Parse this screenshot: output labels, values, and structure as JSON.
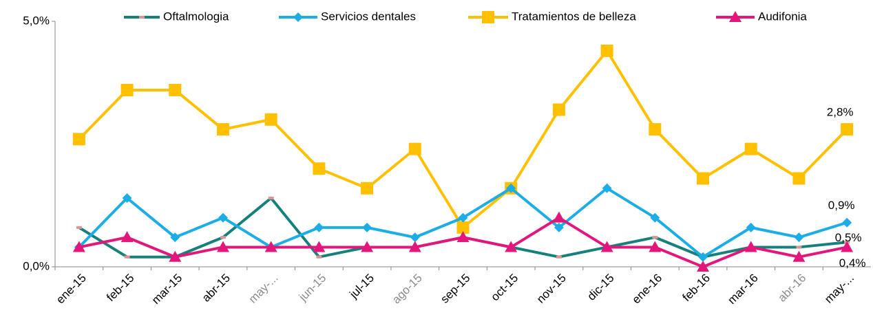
{
  "chart_data": {
    "type": "line",
    "categories": [
      "ene-15",
      "feb-15",
      "mar-15",
      "abr-15",
      "may-...",
      "jun-15",
      "jul-15",
      "ago-15",
      "sep-15",
      "oct-15",
      "nov-15",
      "dic-15",
      "ene-16",
      "feb-16",
      "mar-16",
      "abr-16",
      "may-..."
    ],
    "series": [
      {
        "name": "Oftalmologia",
        "color": "#17807a",
        "marker_color": "#d99694",
        "marker": "dash",
        "values": [
          0.8,
          0.2,
          0.2,
          0.6,
          1.4,
          0.2,
          0.4,
          0.4,
          0.6,
          0.4,
          0.2,
          0.4,
          0.6,
          0.2,
          0.4,
          0.4,
          0.5
        ],
        "value_labels": [
          null,
          null,
          null,
          null,
          null,
          null,
          null,
          null,
          null,
          null,
          null,
          null,
          null,
          null,
          null,
          null,
          "0,5%"
        ]
      },
      {
        "name": "Servicios dentales",
        "color": "#1cade4",
        "marker_color": "#1cade4",
        "marker": "diamond",
        "values": [
          0.4,
          1.4,
          0.6,
          1.0,
          0.4,
          0.8,
          0.8,
          0.6,
          1.0,
          1.6,
          0.8,
          1.6,
          1.0,
          0.2,
          0.8,
          0.6,
          0.9
        ],
        "value_labels": [
          null,
          null,
          null,
          null,
          null,
          null,
          null,
          null,
          null,
          null,
          null,
          null,
          null,
          null,
          null,
          null,
          "0,9%"
        ]
      },
      {
        "name": "Tratamientos de belleza",
        "color": "#ffc000",
        "marker_color": "#ffc000",
        "marker": "square",
        "values": [
          2.6,
          3.6,
          3.6,
          2.8,
          3.0,
          2.0,
          1.6,
          2.4,
          0.8,
          1.6,
          3.2,
          4.4,
          2.8,
          1.8,
          2.4,
          1.8,
          2.8
        ],
        "value_labels": [
          null,
          null,
          null,
          null,
          null,
          null,
          null,
          null,
          null,
          null,
          null,
          null,
          null,
          null,
          null,
          null,
          "2,8%"
        ]
      },
      {
        "name": "Audifonia",
        "color": "#e3177b",
        "marker_color": "#e3177b",
        "marker": "triangle",
        "values": [
          0.4,
          0.6,
          0.2,
          0.4,
          0.4,
          0.4,
          0.4,
          0.4,
          0.6,
          0.4,
          1.0,
          0.4,
          0.4,
          0.0,
          0.4,
          0.2,
          0.4
        ],
        "value_labels": [
          null,
          null,
          null,
          null,
          null,
          null,
          null,
          null,
          null,
          null,
          null,
          null,
          null,
          null,
          null,
          null,
          "0,4%"
        ]
      }
    ],
    "ylim": [
      0,
      5
    ],
    "yticks": [
      {
        "value": 0,
        "label": "0,0%"
      },
      {
        "value": 5,
        "label": "5,0%"
      }
    ],
    "legend": "top"
  }
}
